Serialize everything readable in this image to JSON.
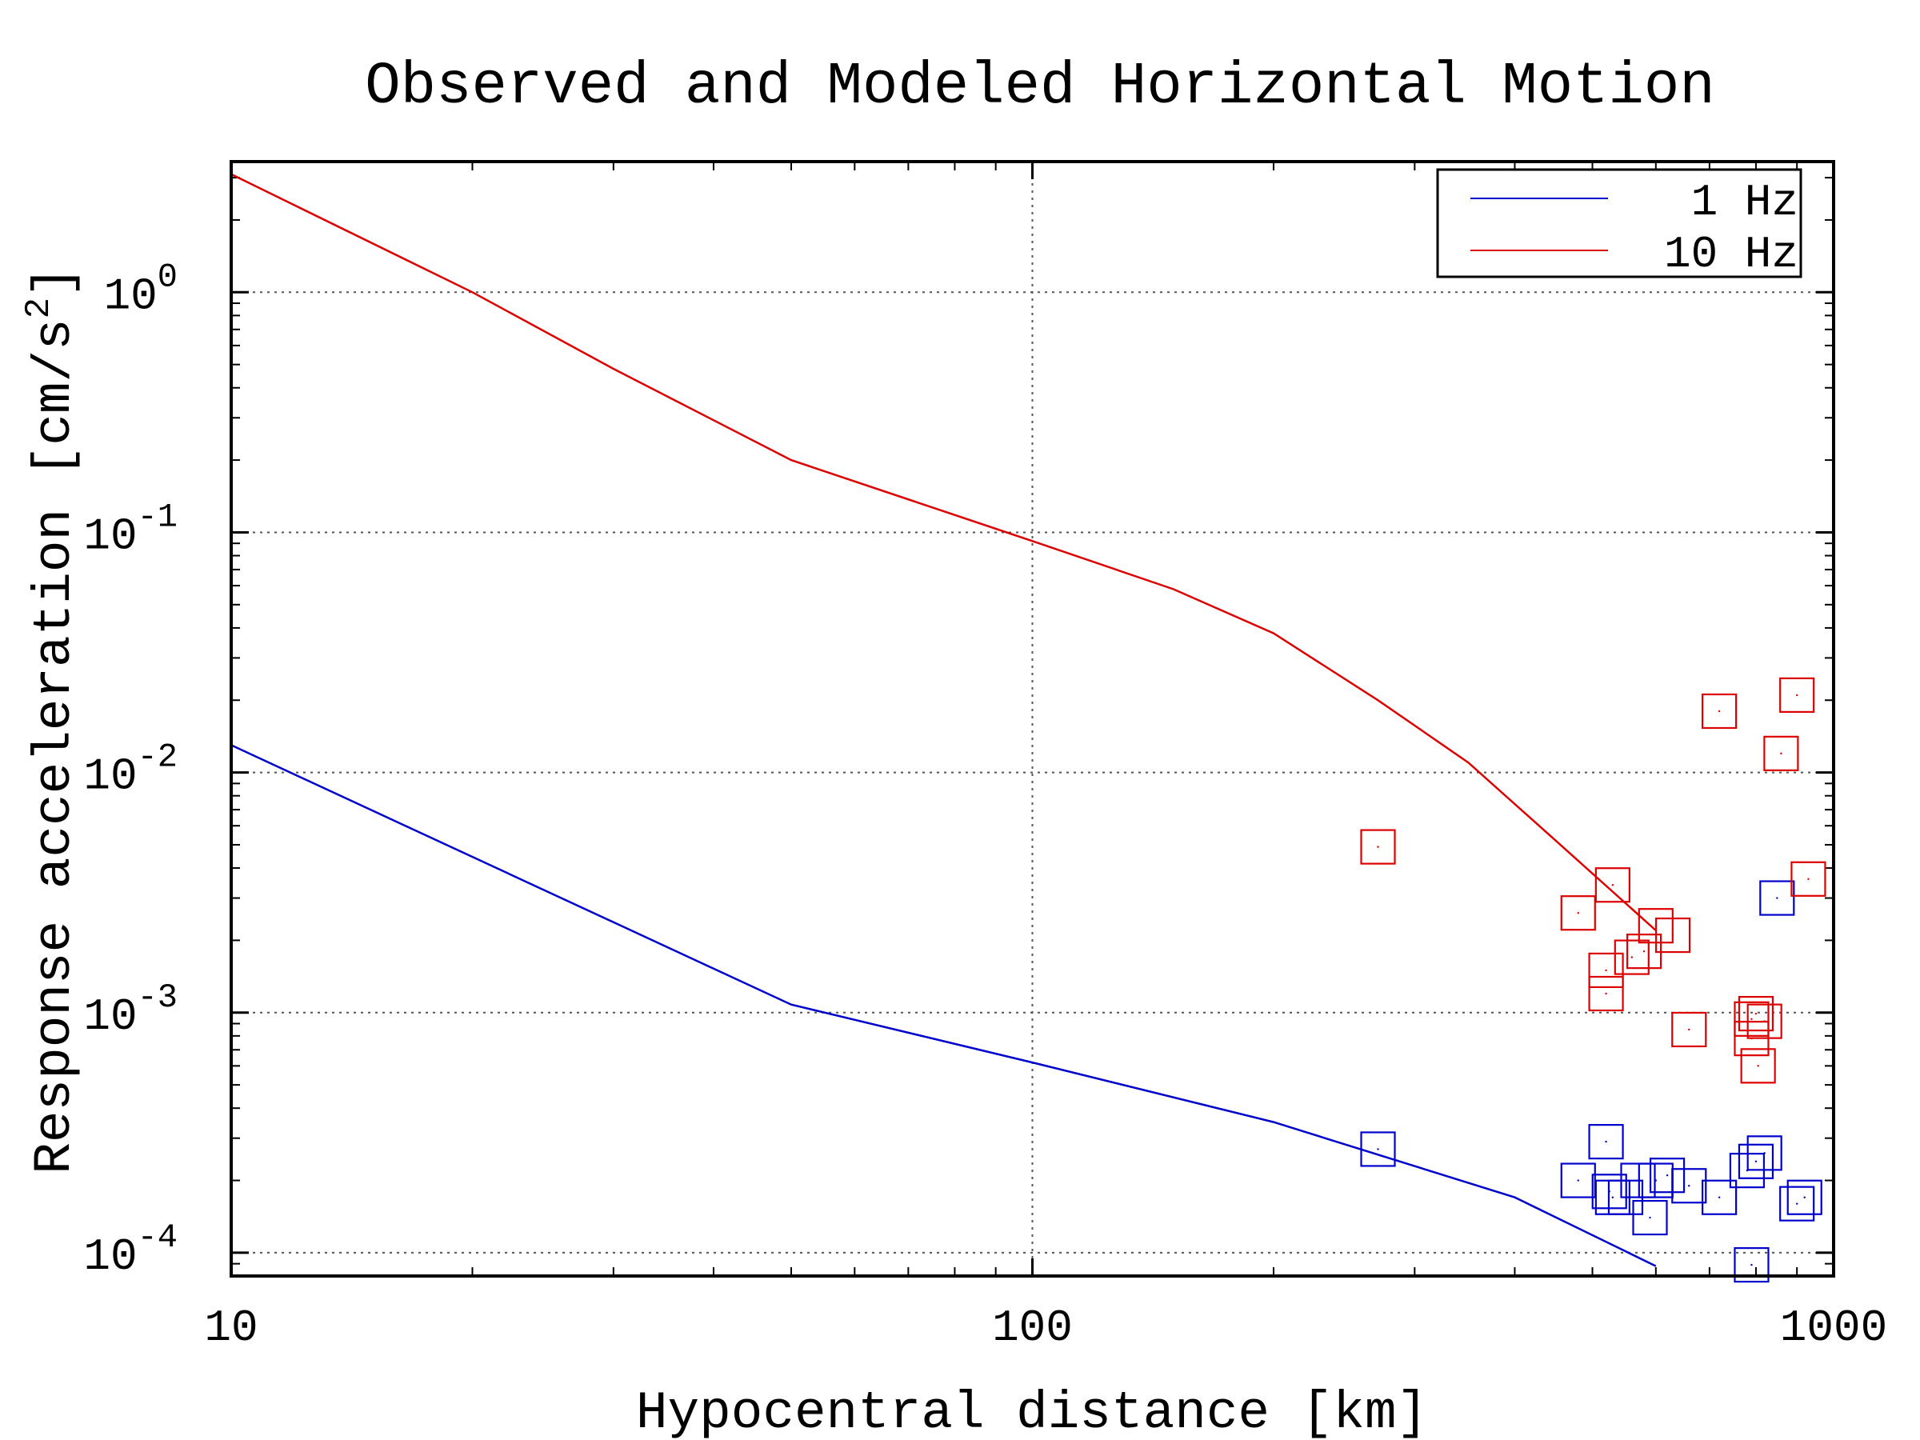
{
  "chart_data": {
    "type": "scatter",
    "title": "Observed and Modeled Horizontal Motion",
    "xlabel": "Hypocentral distance [km]",
    "ylabel_text": "Response acceleration [cm/s",
    "ylabel_sup": "2",
    "ylabel_close": "]",
    "xscale": "log",
    "yscale": "log",
    "xlim": [
      10,
      1000
    ],
    "ylim": [
      8e-05,
      3.5
    ],
    "grid": true,
    "legend_position": "top-right",
    "x_ticks": [
      {
        "value": 10,
        "label": "10"
      },
      {
        "value": 100,
        "label": "100"
      },
      {
        "value": 1000,
        "label": "1000"
      }
    ],
    "y_ticks": [
      {
        "value": 1,
        "base": "10",
        "exp": "0"
      },
      {
        "value": 0.1,
        "base": "10",
        "exp": "-1"
      },
      {
        "value": 0.01,
        "base": "10",
        "exp": "-2"
      },
      {
        "value": 0.001,
        "base": "10",
        "exp": "-3"
      },
      {
        "value": 0.0001,
        "base": "10",
        "exp": "-4"
      }
    ],
    "series": [
      {
        "name": "1 Hz",
        "color": "#0000cc",
        "model_line": [
          [
            10,
            0.013
          ],
          [
            50,
            0.00108
          ],
          [
            100,
            0.00062
          ],
          [
            200,
            0.00035
          ],
          [
            400,
            0.00017
          ],
          [
            600,
            8.8e-05
          ]
        ],
        "observed": [
          [
            270,
            0.00027
          ],
          [
            480,
            0.0002
          ],
          [
            520,
            0.00029
          ],
          [
            525,
            0.00018
          ],
          [
            530,
            0.00017
          ],
          [
            550,
            0.00017
          ],
          [
            570,
            0.0002
          ],
          [
            590,
            0.00014
          ],
          [
            600,
            0.0002
          ],
          [
            620,
            0.00021
          ],
          [
            660,
            0.00019
          ],
          [
            720,
            0.00017
          ],
          [
            780,
            0.00022
          ],
          [
            790,
            8.9e-05
          ],
          [
            800,
            0.00024
          ],
          [
            820,
            0.00026
          ],
          [
            850,
            0.003
          ],
          [
            900,
            0.00016
          ],
          [
            920,
            0.00017
          ]
        ]
      },
      {
        "name": "10 Hz",
        "color": "#dd0000",
        "model_line": [
          [
            10,
            3.1
          ],
          [
            20,
            1.0
          ],
          [
            30,
            0.48
          ],
          [
            50,
            0.2
          ],
          [
            100,
            0.092
          ],
          [
            150,
            0.058
          ],
          [
            200,
            0.038
          ],
          [
            270,
            0.02
          ],
          [
            350,
            0.011
          ],
          [
            450,
            0.0052
          ],
          [
            600,
            0.0022
          ]
        ],
        "observed": [
          [
            270,
            0.0049
          ],
          [
            480,
            0.0026
          ],
          [
            520,
            0.0015
          ],
          [
            520,
            0.0012
          ],
          [
            530,
            0.0034
          ],
          [
            560,
            0.0017
          ],
          [
            580,
            0.0018
          ],
          [
            600,
            0.0023
          ],
          [
            630,
            0.0021
          ],
          [
            660,
            0.00085
          ],
          [
            720,
            0.018
          ],
          [
            790,
            0.00094
          ],
          [
            790,
            0.00078
          ],
          [
            800,
            0.00099
          ],
          [
            805,
            0.0006
          ],
          [
            820,
            0.00092
          ],
          [
            860,
            0.012
          ],
          [
            900,
            0.021
          ],
          [
            930,
            0.0036
          ]
        ]
      }
    ]
  }
}
